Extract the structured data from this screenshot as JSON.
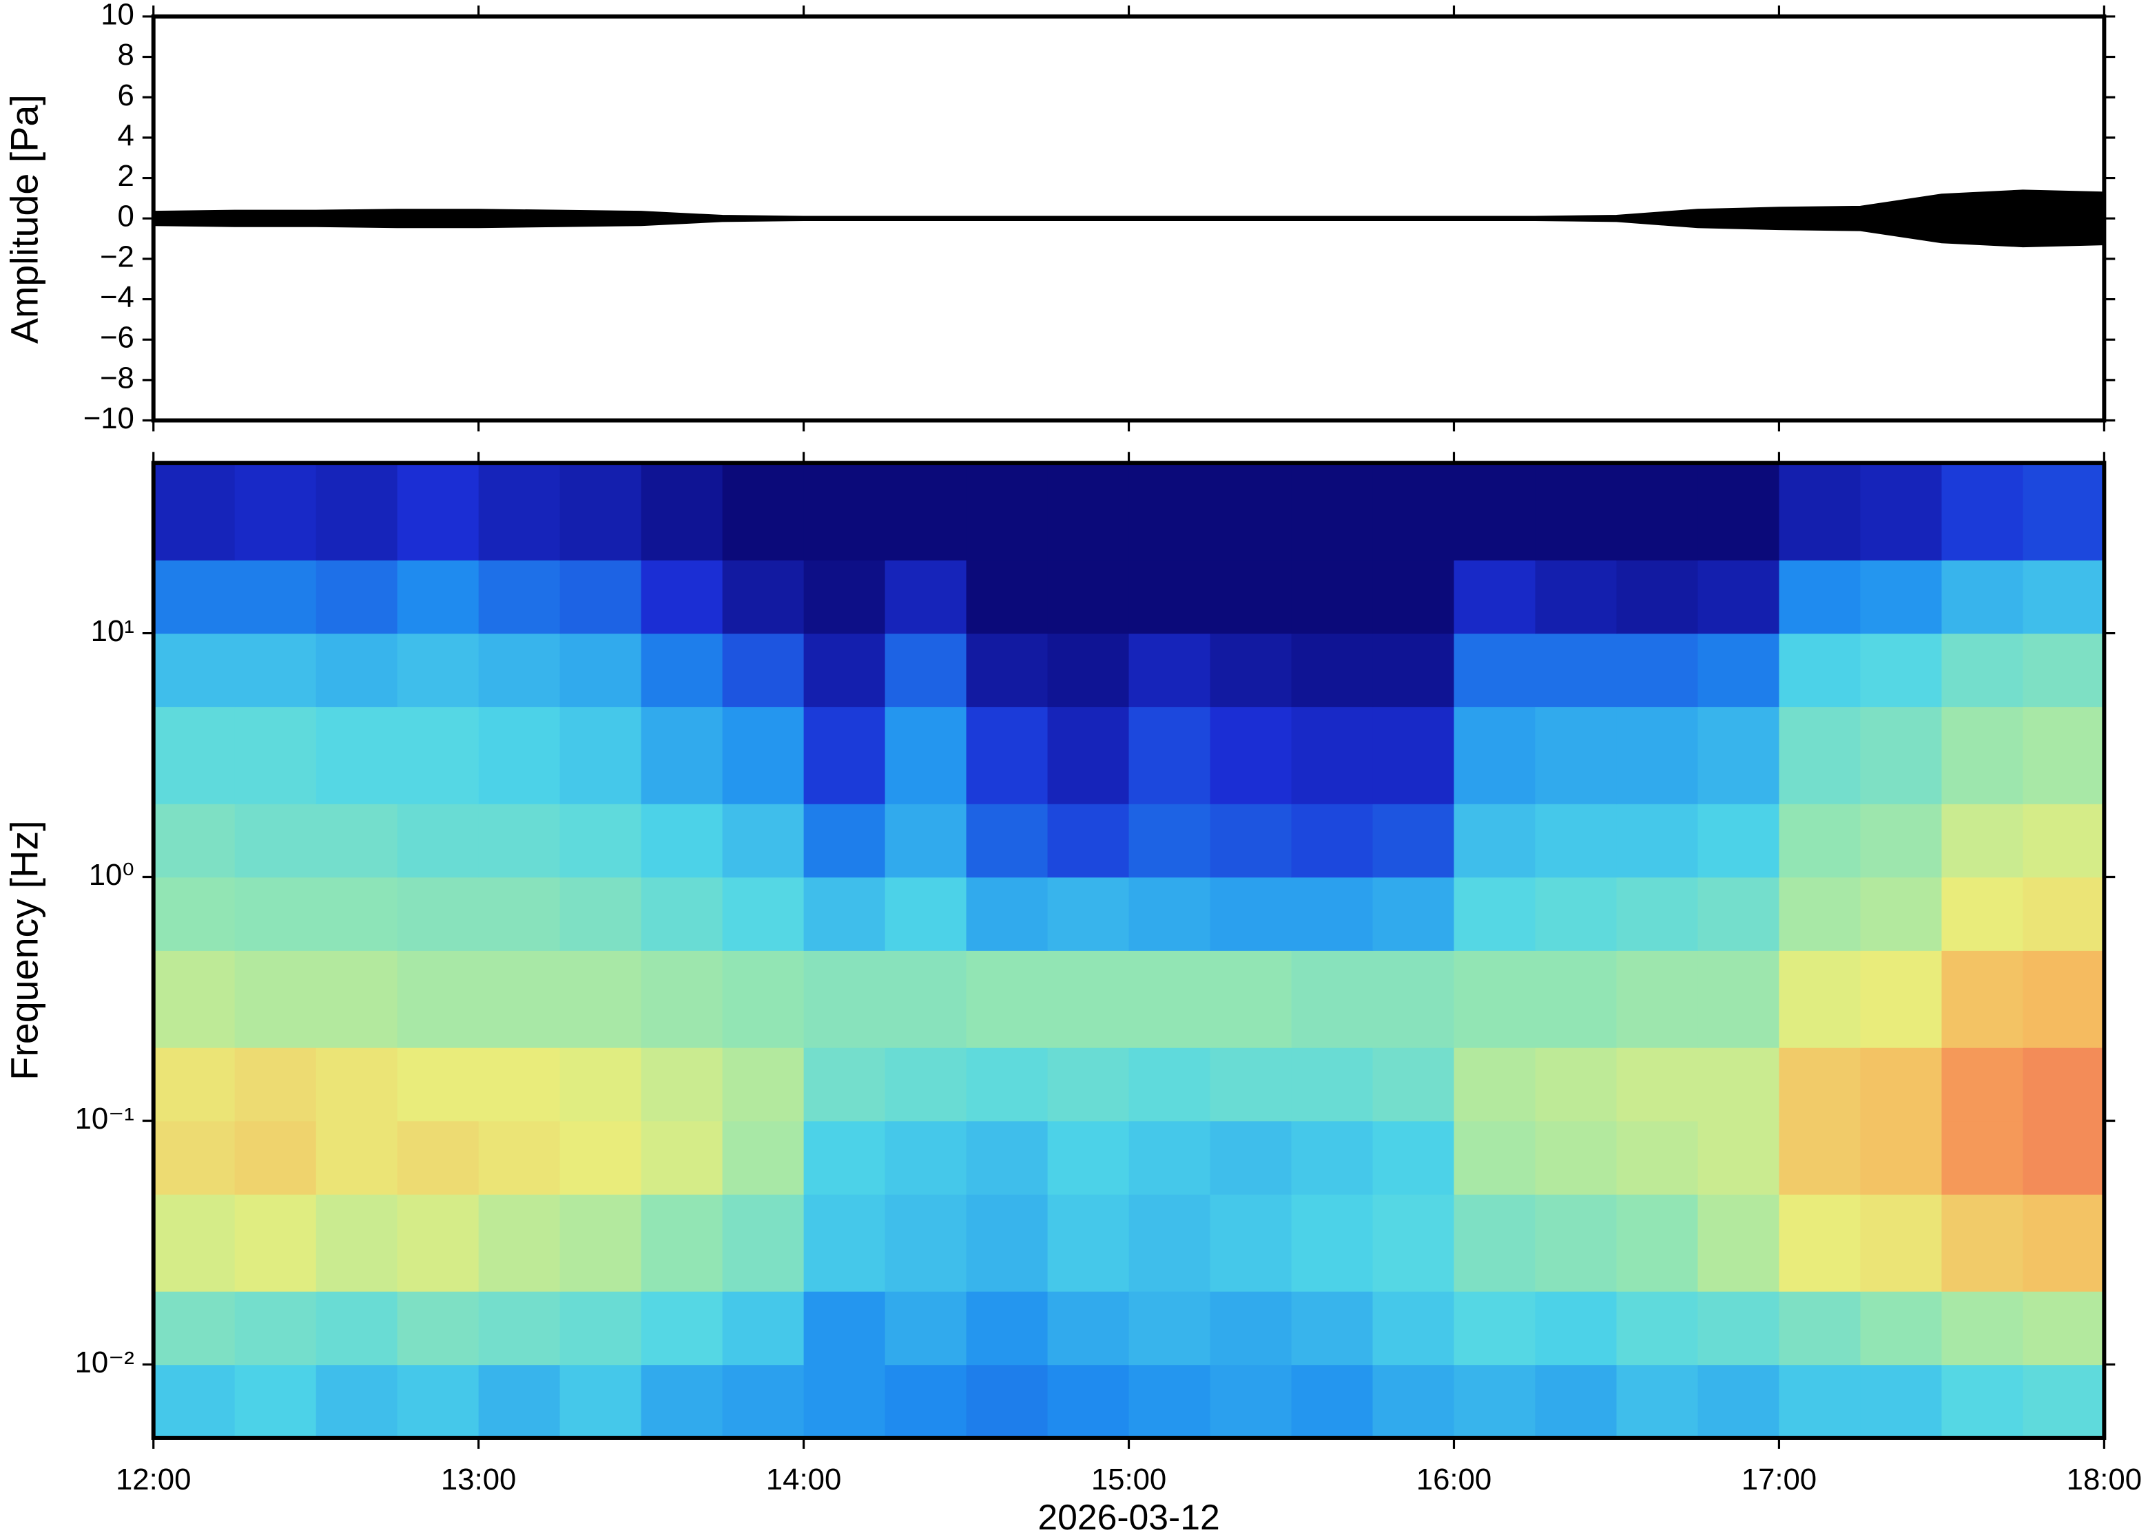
{
  "chart_data": [
    {
      "type": "area",
      "ylabel": "Amplitude [Pa]",
      "color": "#000000",
      "x": [
        "12:00",
        "12:15",
        "12:30",
        "12:45",
        "13:00",
        "13:15",
        "13:30",
        "13:45",
        "14:00",
        "14:15",
        "14:30",
        "14:45",
        "15:00",
        "15:15",
        "15:30",
        "15:45",
        "16:00",
        "16:15",
        "16:30",
        "16:45",
        "17:00",
        "17:15",
        "17:30",
        "17:45",
        "18:00"
      ],
      "values": [
        0.35,
        0.4,
        0.4,
        0.45,
        0.45,
        0.4,
        0.35,
        0.15,
        0.1,
        0.1,
        0.1,
        0.1,
        0.1,
        0.1,
        0.1,
        0.1,
        0.1,
        0.1,
        0.15,
        0.45,
        0.55,
        0.6,
        1.2,
        1.4,
        1.3
      ],
      "xlim": [
        "12:00",
        "18:00"
      ],
      "xticks": [
        "12:00",
        "13:00",
        "14:00",
        "15:00",
        "16:00",
        "17:00",
        "18:00"
      ],
      "ylim": [
        -10,
        10
      ],
      "yticks": [
        {
          "value": -10,
          "label": "−10"
        },
        {
          "value": -8,
          "label": "−8"
        },
        {
          "value": -6,
          "label": "−6"
        },
        {
          "value": -4,
          "label": "−4"
        },
        {
          "value": -2,
          "label": "−2"
        },
        0,
        2,
        4,
        6,
        8,
        10
      ]
    },
    {
      "type": "heatmap",
      "ylabel": "Frequency [Hz]",
      "xlabel": "2026-03-12",
      "log_y": true,
      "xbins": [
        "12:00",
        "12:15",
        "12:30",
        "12:45",
        "13:00",
        "13:15",
        "13:30",
        "13:45",
        "14:00",
        "14:15",
        "14:30",
        "14:45",
        "15:00",
        "15:15",
        "15:30",
        "15:45",
        "16:00",
        "16:15",
        "16:30",
        "16:45",
        "17:00",
        "17:15",
        "17:30",
        "17:45",
        "18:00"
      ],
      "ybins": [
        0.005,
        0.01,
        0.02,
        0.05,
        0.1,
        0.2,
        0.5,
        1,
        2,
        5,
        10,
        20,
        50
      ],
      "zlim": [
        0,
        1
      ],
      "colormap": [
        "#0b0a7a",
        "#1b2fd6",
        "#1f8ff0",
        "#4fd6e8",
        "#98e6b0",
        "#e8ee7c",
        "#f7b45c",
        "#ef5a52"
      ],
      "z": [
        [
          0.4,
          0.42,
          0.38,
          0.4,
          0.36,
          0.4,
          0.34,
          0.32,
          0.3,
          0.28,
          0.26,
          0.28,
          0.3,
          0.32,
          0.3,
          0.34,
          0.36,
          0.34,
          0.38,
          0.36,
          0.4,
          0.4,
          0.44,
          0.46
        ],
        [
          0.52,
          0.5,
          0.48,
          0.52,
          0.5,
          0.48,
          0.44,
          0.4,
          0.3,
          0.34,
          0.3,
          0.34,
          0.36,
          0.34,
          0.36,
          0.4,
          0.44,
          0.42,
          0.46,
          0.48,
          0.52,
          0.56,
          0.6,
          0.62
        ],
        [
          0.68,
          0.7,
          0.66,
          0.68,
          0.64,
          0.62,
          0.56,
          0.52,
          0.4,
          0.38,
          0.36,
          0.4,
          0.38,
          0.4,
          0.42,
          0.44,
          0.52,
          0.54,
          0.56,
          0.62,
          0.72,
          0.74,
          0.8,
          0.82
        ],
        [
          0.76,
          0.78,
          0.74,
          0.76,
          0.74,
          0.72,
          0.68,
          0.6,
          0.42,
          0.4,
          0.38,
          0.42,
          0.4,
          0.38,
          0.4,
          0.42,
          0.6,
          0.62,
          0.64,
          0.66,
          0.8,
          0.82,
          0.9,
          0.92
        ],
        [
          0.74,
          0.76,
          0.74,
          0.72,
          0.72,
          0.7,
          0.66,
          0.62,
          0.5,
          0.48,
          0.46,
          0.48,
          0.46,
          0.48,
          0.48,
          0.5,
          0.62,
          0.64,
          0.66,
          0.66,
          0.8,
          0.82,
          0.9,
          0.92
        ],
        [
          0.64,
          0.62,
          0.62,
          0.6,
          0.6,
          0.6,
          0.58,
          0.56,
          0.54,
          0.54,
          0.56,
          0.56,
          0.56,
          0.56,
          0.54,
          0.54,
          0.56,
          0.56,
          0.58,
          0.58,
          0.7,
          0.72,
          0.82,
          0.84
        ],
        [
          0.56,
          0.55,
          0.55,
          0.54,
          0.54,
          0.52,
          0.48,
          0.44,
          0.38,
          0.42,
          0.34,
          0.36,
          0.34,
          0.32,
          0.32,
          0.34,
          0.44,
          0.46,
          0.48,
          0.5,
          0.6,
          0.62,
          0.72,
          0.74
        ],
        [
          0.52,
          0.5,
          0.5,
          0.48,
          0.48,
          0.46,
          0.42,
          0.38,
          0.26,
          0.34,
          0.22,
          0.18,
          0.22,
          0.2,
          0.18,
          0.2,
          0.38,
          0.4,
          0.4,
          0.42,
          0.56,
          0.58,
          0.66,
          0.68
        ],
        [
          0.46,
          0.46,
          0.44,
          0.44,
          0.42,
          0.4,
          0.34,
          0.3,
          0.16,
          0.3,
          0.16,
          0.1,
          0.18,
          0.14,
          0.12,
          0.12,
          0.32,
          0.34,
          0.34,
          0.36,
          0.5,
          0.52,
          0.58,
          0.6
        ],
        [
          0.38,
          0.38,
          0.36,
          0.38,
          0.36,
          0.34,
          0.26,
          0.2,
          0.08,
          0.22,
          0.06,
          0.04,
          0.1,
          0.06,
          0.04,
          0.04,
          0.24,
          0.24,
          0.24,
          0.26,
          0.42,
          0.44,
          0.5,
          0.52
        ],
        [
          0.26,
          0.26,
          0.24,
          0.28,
          0.24,
          0.22,
          0.14,
          0.06,
          0.02,
          0.1,
          0.0,
          0.0,
          0.0,
          0.0,
          0.0,
          0.0,
          0.12,
          0.08,
          0.06,
          0.08,
          0.28,
          0.3,
          0.36,
          0.38
        ],
        [
          0.1,
          0.12,
          0.1,
          0.14,
          0.1,
          0.08,
          0.04,
          0.0,
          0.0,
          0.0,
          0.0,
          0.0,
          0.0,
          0.0,
          0.0,
          0.0,
          0.0,
          0.0,
          0.0,
          0.0,
          0.08,
          0.1,
          0.16,
          0.18
        ]
      ],
      "xlim": [
        "12:00",
        "18:00"
      ],
      "xticks": [
        "12:00",
        "13:00",
        "14:00",
        "15:00",
        "16:00",
        "17:00",
        "18:00"
      ],
      "ylim": [
        0.005,
        50
      ],
      "yticks": [
        {
          "value": 0.01,
          "label": "10⁻²"
        },
        {
          "value": 0.1,
          "label": "10⁻¹"
        },
        {
          "value": 1,
          "label": "10⁰"
        },
        {
          "value": 10,
          "label": "10¹"
        }
      ]
    }
  ]
}
